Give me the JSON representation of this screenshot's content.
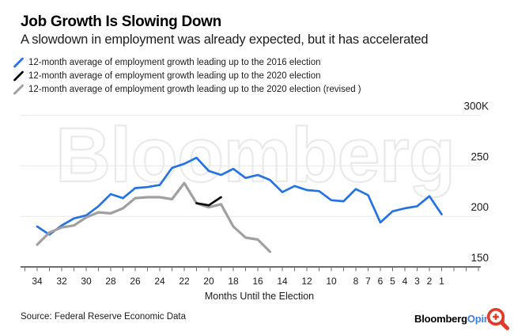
{
  "header": {
    "title": "Job Growth Is Slowing Down",
    "subtitle": "A slowdown in employment was already expected, but it has accelerated"
  },
  "footer": {
    "source": "Source: Federal Reserve Economic Data",
    "brand": {
      "bloomberg": "Bloomberg",
      "opinion": "Opinion"
    }
  },
  "icons": {
    "legend_marker": "diagonal-line-swatch",
    "magnifier": "red-zoom-magnifier-with-plus"
  },
  "colors": {
    "blue_line": "#2472e8",
    "black_line": "#0a0a0a",
    "gray_line": "#a0a0a0",
    "gridline": "#e8e8e8",
    "axis": "#6e6e6e",
    "text": "#1a1a1a",
    "watermark": "#eaeaea",
    "brand_opinion_blue": "#3d7edb",
    "magnifier_red": "#e23b27"
  },
  "chart_data": {
    "type": "line",
    "title": "Job Growth Is Slowing Down",
    "subtitle": "A slowdown in employment was already expected, but it has accelerated",
    "xlabel": "Months Until the Election",
    "ylabel": "",
    "y_unit": "thousands of jobs (K)",
    "x_ticks": [
      34,
      32,
      30,
      28,
      26,
      24,
      22,
      20,
      18,
      16,
      14,
      12,
      10,
      8,
      7,
      6,
      5,
      4,
      3,
      2,
      1
    ],
    "y_ticks": [
      {
        "value": 300,
        "label": "300K"
      },
      {
        "value": 250,
        "label": "250"
      },
      {
        "value": 200,
        "label": "200"
      },
      {
        "value": 150,
        "label": "150"
      }
    ],
    "x_axis_direction": "months counting down from 34 to 1",
    "ylim": [
      150,
      310
    ],
    "grid": "horizontal only",
    "legend_position": "top-left above plot",
    "watermark": "Bloomberg",
    "series": [
      {
        "key": "2016",
        "name": "12-month average of employment growth leading up to the 2016 election",
        "color": "#2472e8",
        "width": 2.7,
        "months": [
          34,
          33,
          32,
          31,
          30,
          29,
          28,
          27,
          26,
          25,
          24,
          23,
          22,
          21,
          20,
          19,
          18,
          17,
          16,
          15,
          14,
          13,
          12,
          11,
          10,
          9,
          8,
          7,
          6,
          5,
          4,
          3,
          2,
          1
        ],
        "values": [
          190,
          182,
          191,
          198,
          201,
          210,
          222,
          218,
          228,
          229,
          231,
          248,
          252,
          258,
          245,
          241,
          247,
          238,
          241,
          236,
          224,
          230,
          226,
          225,
          216,
          215,
          227,
          221,
          194,
          205,
          208,
          210,
          220,
          202
        ]
      },
      {
        "key": "2020",
        "name": "12-month average of employment growth leading up to the 2020 election",
        "color": "#0a0a0a",
        "width": 2.7,
        "months": [
          21,
          20,
          19
        ],
        "values": [
          213,
          211,
          219
        ]
      },
      {
        "key": "2020-revised",
        "name": "12-month average of employment growth leading up to the 2020 election (revised )",
        "color": "#a0a0a0",
        "width": 3.2,
        "months": [
          34,
          33,
          32,
          31,
          30,
          29,
          28,
          27,
          26,
          25,
          24,
          23,
          22,
          21,
          20,
          19,
          18,
          17,
          16,
          15
        ],
        "values": [
          172,
          184,
          189,
          191,
          199,
          204,
          203,
          208,
          218,
          219,
          219,
          217,
          233,
          213,
          209,
          212,
          190,
          179,
          177,
          165
        ]
      }
    ]
  }
}
